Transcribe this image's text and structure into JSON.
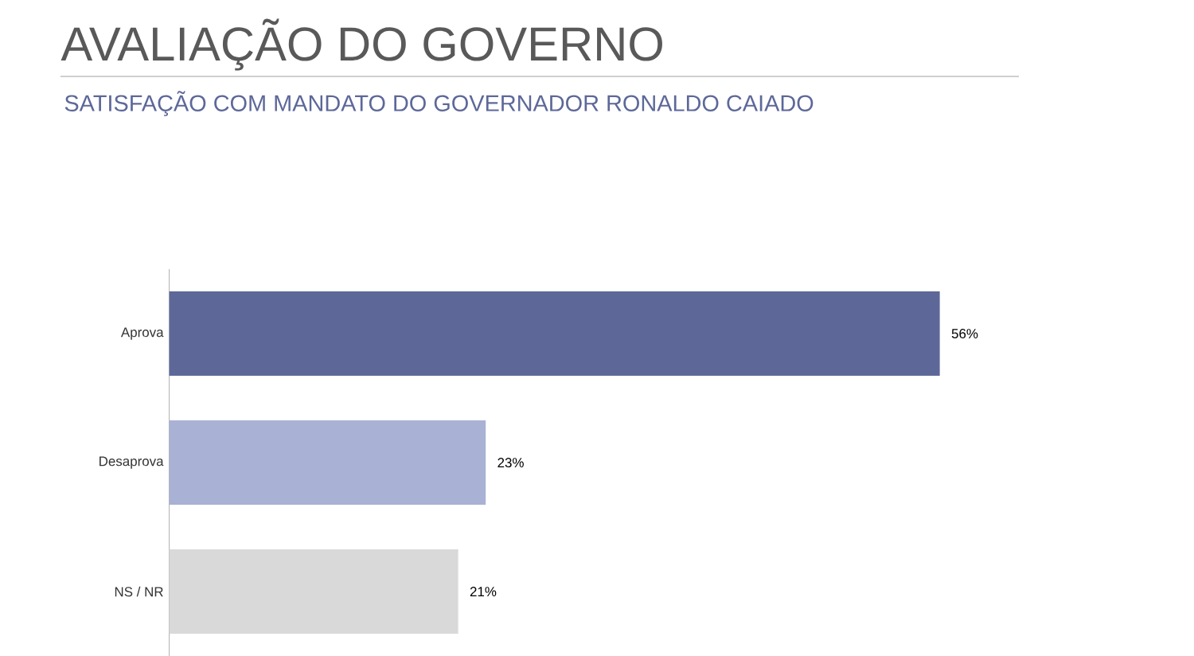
{
  "chart_data": {
    "type": "bar",
    "orientation": "horizontal",
    "title": "AVALIAÇÃO DO GOVERNO",
    "subtitle": "SATISFAÇÃO COM MANDATO DO GOVERNADOR RONALDO CAIADO",
    "categories": [
      "Aprova",
      "Desaprova",
      "NS / NR"
    ],
    "values": [
      56,
      23,
      21
    ],
    "colors": [
      "#5d6899",
      "#a9b2d4",
      "#d9d9d9"
    ],
    "value_labels": [
      "56%",
      "23%",
      "21%"
    ]
  }
}
